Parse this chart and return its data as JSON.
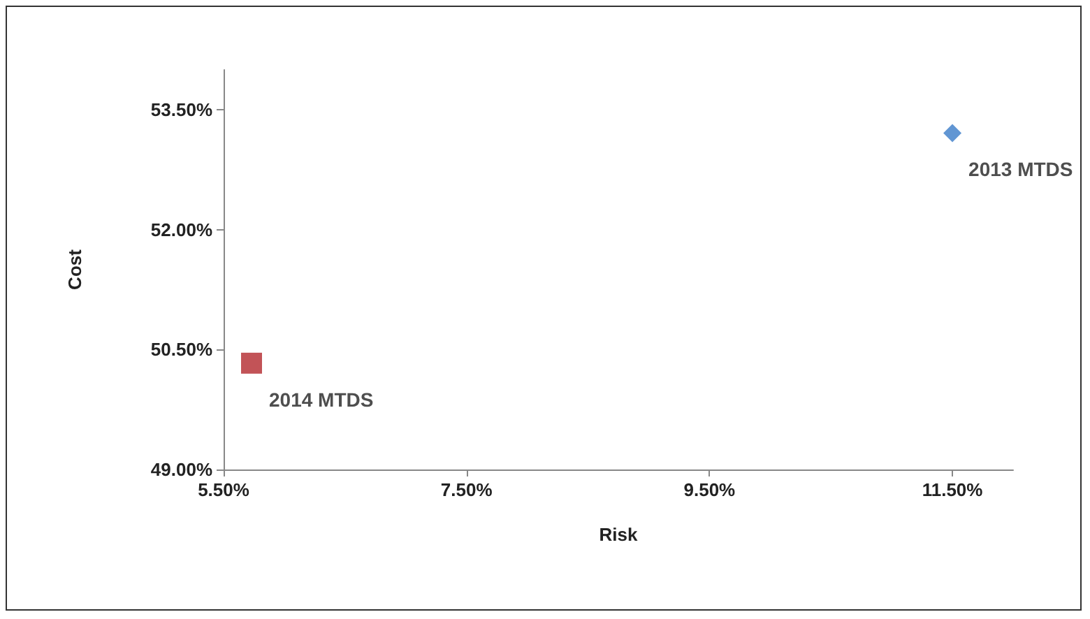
{
  "chart_data": {
    "type": "scatter",
    "xlabel": "Risk",
    "ylabel": "Cost",
    "xlim": [
      5.5,
      12.0
    ],
    "xticks": [
      {
        "value": 5.5,
        "label": "5.50%"
      },
      {
        "value": 7.5,
        "label": "7.50%"
      },
      {
        "value": 9.5,
        "label": "9.50%"
      },
      {
        "value": 11.5,
        "label": "11.50%"
      }
    ],
    "ylim": [
      49,
      54
    ],
    "yticks": [
      {
        "value": 49,
        "label": "49.00%"
      },
      {
        "value": 50.5,
        "label": "50.50%"
      },
      {
        "value": 52,
        "label": "52.00%"
      },
      {
        "value": 53.5,
        "label": "53.50%"
      }
    ],
    "grid": false,
    "legend": false,
    "series": [
      {
        "name": "2013 MTDS",
        "color": "#3a7cc8",
        "marker": "diamond",
        "x": [
          11.5
        ],
        "values": [
          53.21
        ]
      },
      {
        "name": "2014 MTDS",
        "color": "#b3282d",
        "marker": "square",
        "x": [
          5.73
        ],
        "values": [
          50.33
        ]
      }
    ]
  }
}
